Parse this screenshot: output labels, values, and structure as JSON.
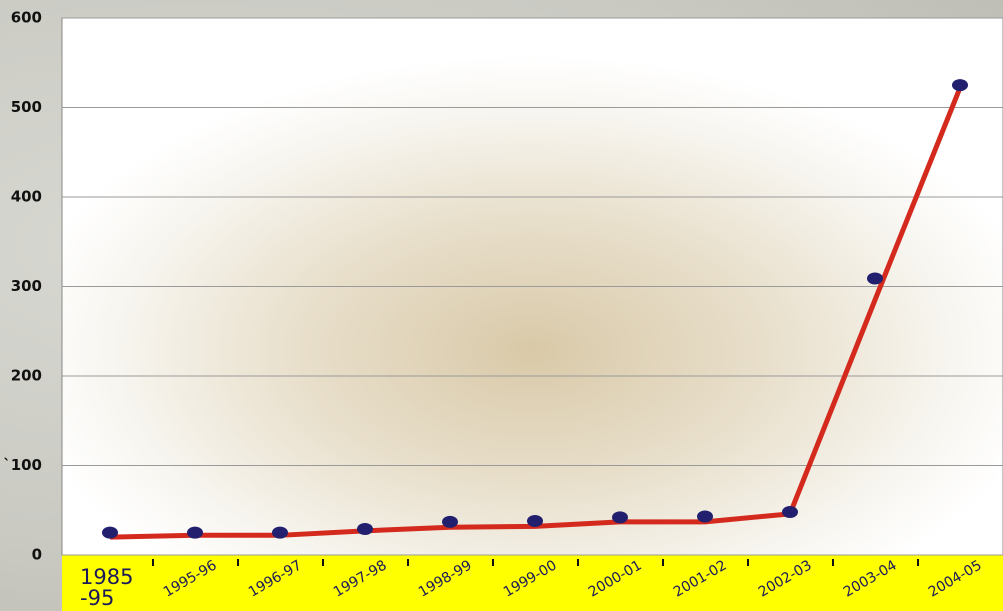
{
  "chart_data": {
    "type": "line",
    "categories": [
      "1985\n-95",
      "1995-96",
      "1996-97",
      "1997-98",
      "1998-99",
      "1999-00",
      "2000-01",
      "2001-02",
      "2002-03",
      "2003-04",
      "2004-05"
    ],
    "series": [
      {
        "color": "#d42a1e",
        "values": [
          20,
          22,
          22,
          27,
          31,
          32,
          37,
          37,
          46,
          285,
          522
        ]
      },
      {
        "color": "#22206e",
        "values": [
          25,
          25,
          25,
          29,
          37,
          38,
          42,
          43,
          48,
          309,
          525
        ]
      }
    ],
    "ylim": [
      0,
      600
    ],
    "yticks": [
      0,
      {
        "value": 100,
        "label": "`100"
      },
      200,
      300,
      400,
      500,
      600
    ],
    "grid": true
  }
}
